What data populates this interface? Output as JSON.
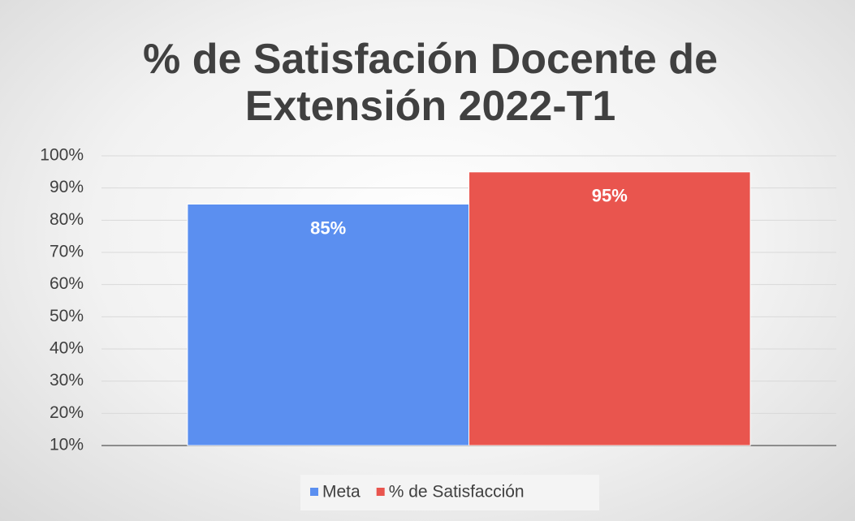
{
  "chart_data": {
    "type": "bar",
    "title": "% de Satisfación Docente de Extensión 2022-T1",
    "categories": [
      null
    ],
    "series": [
      {
        "name": "Meta",
        "color": "#5b8ff0",
        "values": [
          85
        ],
        "value_labels": [
          "85%"
        ]
      },
      {
        "name": "% de Satisfacción",
        "color": "#e9554e",
        "values": [
          95
        ],
        "value_labels": [
          "95%"
        ]
      }
    ],
    "ylim": [
      10,
      100
    ],
    "yticks": [
      {
        "value": 10,
        "label": "10%"
      },
      {
        "value": 20,
        "label": "20%"
      },
      {
        "value": 30,
        "label": "30%"
      },
      {
        "value": 40,
        "label": "40%"
      },
      {
        "value": 50,
        "label": "50%"
      },
      {
        "value": 60,
        "label": "60%"
      },
      {
        "value": 70,
        "label": "70%"
      },
      {
        "value": 80,
        "label": "80%"
      },
      {
        "value": 90,
        "label": "90%"
      },
      {
        "value": 100,
        "label": "100%"
      }
    ],
    "grid": true,
    "legend": "bottom"
  }
}
